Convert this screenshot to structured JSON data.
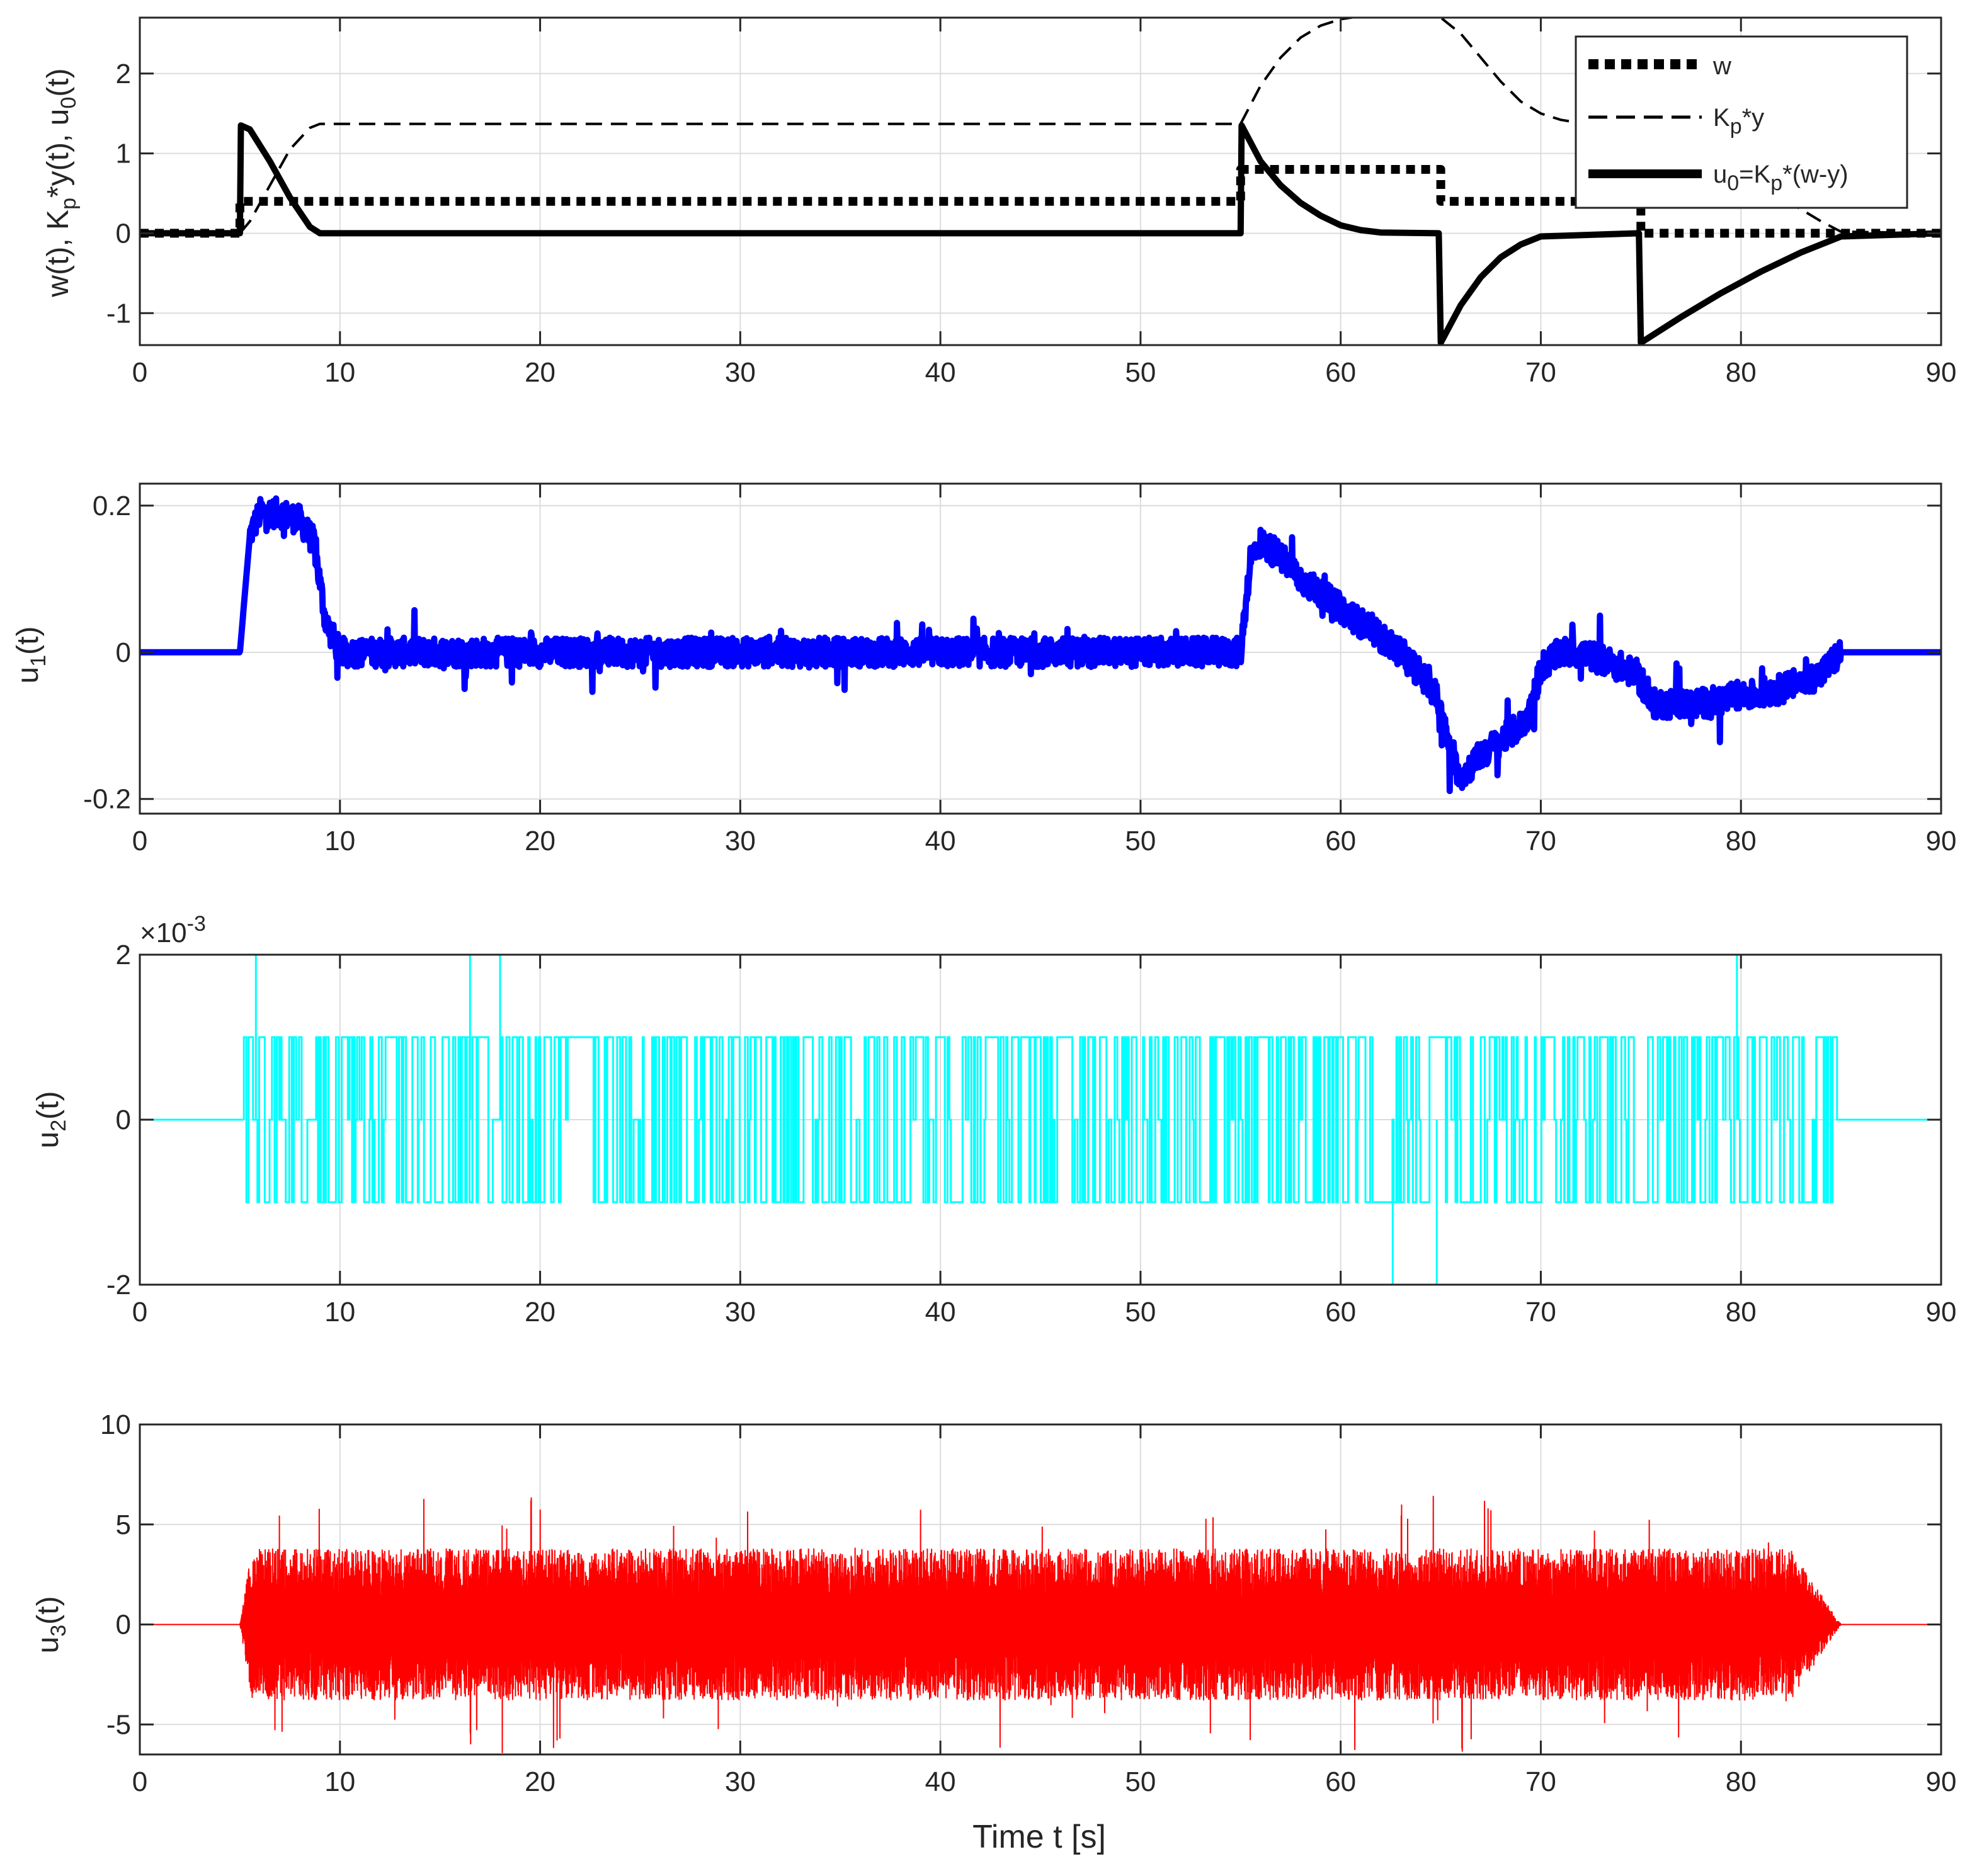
{
  "figure": {
    "xlabel": "Time t [s]",
    "colors": {
      "u1": "#0000ff",
      "u2": "#00ffff",
      "u3": "#ff0000",
      "u0": "#000000",
      "axes": "#262626",
      "grid": "#dcdcdc"
    }
  },
  "chart_data": [
    {
      "type": "line",
      "panel": 1,
      "ylabel_parts": [
        "w(t), K",
        "p",
        "*y(t), u",
        "0",
        "(t)"
      ],
      "xlim": [
        0,
        90
      ],
      "ylim": [
        -1.4,
        2.7
      ],
      "xticks": [
        0,
        10,
        20,
        30,
        40,
        50,
        60,
        70,
        80,
        90
      ],
      "yticks": [
        -1,
        0,
        1,
        2
      ],
      "grid": true,
      "legend_position": "top-right",
      "series": [
        {
          "key": "w",
          "legend_parts": [
            "w"
          ],
          "style": "dotted-thick",
          "color": "#000000",
          "x": [
            0,
            5,
            5,
            55,
            55,
            65,
            65,
            75,
            75,
            90
          ],
          "y": [
            0,
            0,
            0.4,
            0.4,
            0.8,
            0.8,
            0.4,
            0.4,
            0,
            0
          ]
        },
        {
          "key": "kpy",
          "legend_parts": [
            "K",
            "p",
            "*y"
          ],
          "style": "dashed",
          "color": "#000000",
          "x": [
            0,
            5,
            5.5,
            6.5,
            7.5,
            8.5,
            9,
            55,
            56,
            57,
            58,
            59,
            60,
            61,
            62,
            63,
            64,
            65,
            66,
            67,
            68,
            69,
            70,
            71,
            72,
            73,
            74,
            75,
            76,
            77,
            78,
            79,
            80,
            81,
            82,
            83,
            84,
            85,
            90
          ],
          "y": [
            0,
            0,
            0.15,
            0.6,
            1.05,
            1.32,
            1.37,
            1.37,
            1.85,
            2.2,
            2.45,
            2.6,
            2.68,
            2.72,
            2.73,
            2.73,
            2.72,
            2.7,
            2.5,
            2.2,
            1.9,
            1.65,
            1.5,
            1.42,
            1.38,
            1.37,
            1.37,
            1.35,
            1.3,
            1.2,
            1.05,
            0.9,
            0.75,
            0.6,
            0.45,
            0.3,
            0.15,
            0.02,
            0
          ]
        },
        {
          "key": "u0",
          "legend_parts": [
            "u",
            "0",
            "=K",
            "p",
            "*(w-y)"
          ],
          "style": "solid-thick",
          "color": "#000000",
          "x": [
            0,
            5,
            5.05,
            5.5,
            6.5,
            7.5,
            8.5,
            9,
            55,
            55.05,
            56,
            57,
            58,
            59,
            60,
            61,
            62,
            64.9,
            65,
            66,
            67,
            68,
            69,
            70,
            74.9,
            75,
            77,
            79,
            81,
            83,
            85,
            90
          ],
          "y": [
            0,
            0,
            1.35,
            1.3,
            0.9,
            0.45,
            0.08,
            0,
            0,
            1.35,
            0.9,
            0.6,
            0.38,
            0.22,
            0.1,
            0.04,
            0.01,
            0,
            -1.37,
            -0.9,
            -0.55,
            -0.3,
            -0.14,
            -0.04,
            0,
            -1.37,
            -1.05,
            -0.75,
            -0.48,
            -0.24,
            -0.04,
            0
          ]
        }
      ]
    },
    {
      "type": "line",
      "panel": 2,
      "ylabel_parts": [
        "u",
        "1",
        "(t)"
      ],
      "xlim": [
        0,
        90
      ],
      "ylim": [
        -0.22,
        0.23
      ],
      "xticks": [
        0,
        10,
        20,
        30,
        40,
        50,
        60,
        70,
        80,
        90
      ],
      "yticks": [
        -0.2,
        0,
        0.2
      ],
      "ytick_labels": [
        "-0.2",
        "0",
        "0.2"
      ],
      "grid": true,
      "series": [
        {
          "key": "u1",
          "name": "u1(t)",
          "color": "#0000ff",
          "envelope_x": [
            0,
            5,
            5.5,
            6,
            7,
            8,
            8.7,
            9.3,
            10,
            20,
            30,
            40,
            50,
            55,
            55.5,
            56,
            57,
            58,
            59,
            60,
            61,
            62,
            63,
            64,
            64.8,
            65.5,
            66,
            67,
            68,
            69,
            69.5,
            70,
            71,
            72,
            73,
            74,
            74.8,
            75.5,
            76,
            78,
            80,
            82,
            84,
            85,
            85.5,
            90
          ],
          "envelope_y": [
            0,
            0,
            0.16,
            0.19,
            0.19,
            0.18,
            0.15,
            0.04,
            0,
            0,
            0,
            0,
            0,
            0,
            0.13,
            0.15,
            0.13,
            0.1,
            0.08,
            0.06,
            0.04,
            0.02,
            0,
            -0.03,
            -0.06,
            -0.14,
            -0.17,
            -0.14,
            -0.12,
            -0.1,
            -0.08,
            -0.02,
            0,
            0,
            -0.01,
            -0.02,
            -0.03,
            -0.07,
            -0.07,
            -0.07,
            -0.06,
            -0.05,
            -0.03,
            0,
            0,
            0
          ],
          "noise_amp": 0.04,
          "active_from": 5.5,
          "active_to": 85
        }
      ]
    },
    {
      "type": "line",
      "panel": 3,
      "ylabel_parts": [
        "u",
        "2",
        "(t)"
      ],
      "xlim": [
        0,
        90
      ],
      "ylim": [
        -0.002,
        0.002
      ],
      "xticks": [
        0,
        10,
        20,
        30,
        40,
        50,
        60,
        70,
        80,
        90
      ],
      "yticks": [
        -2,
        0,
        2
      ],
      "ytick_labels": [
        "-2",
        "0",
        "2"
      ],
      "yscale_parts": [
        "×10",
        "-3"
      ],
      "grid": true,
      "series": [
        {
          "key": "u2",
          "name": "u2(t)",
          "color": "#00ffff",
          "levels": [
            -0.001,
            0,
            0.001
          ],
          "active_from": 5.2,
          "active_to": 84.8,
          "spikes": [
            {
              "x": 5.8,
              "y": 0.002
            },
            {
              "x": 16.5,
              "y": 0.002
            },
            {
              "x": 18,
              "y": 0.002
            },
            {
              "x": 62.6,
              "y": -0.002
            },
            {
              "x": 64.8,
              "y": -0.002
            },
            {
              "x": 79.8,
              "y": 0.002
            }
          ]
        }
      ]
    },
    {
      "type": "line",
      "panel": 4,
      "ylabel_parts": [
        "u",
        "3",
        "(t)"
      ],
      "xlim": [
        0,
        90
      ],
      "ylim": [
        -6.5,
        10
      ],
      "xticks": [
        0,
        10,
        20,
        30,
        40,
        50,
        60,
        70,
        80,
        90
      ],
      "yticks": [
        -5,
        0,
        5,
        10
      ],
      "grid": true,
      "series": [
        {
          "key": "u3",
          "name": "u3(t)",
          "color": "#ff0000",
          "active_from": 5.0,
          "active_to": 85.0,
          "amplitude": 3.8,
          "peak": 7.3
        }
      ]
    }
  ]
}
